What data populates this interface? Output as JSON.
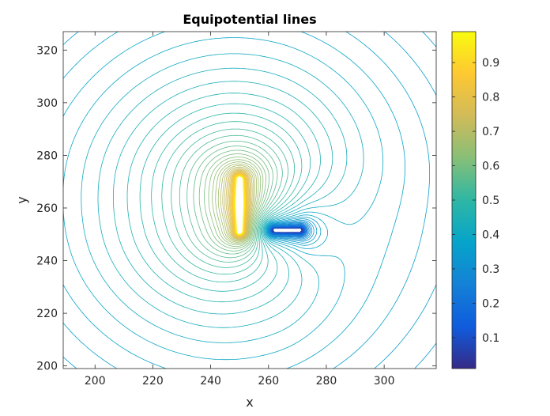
{
  "chart_data": {
    "type": "contour",
    "title": "Equipotential lines",
    "xlabel": "x",
    "ylabel": "y",
    "xlim": [
      189,
      318
    ],
    "ylim": [
      199,
      327
    ],
    "xticks": [
      200,
      220,
      240,
      260,
      280,
      300
    ],
    "yticks": [
      200,
      220,
      240,
      260,
      280,
      300,
      320
    ],
    "colormap": "parula",
    "colorbar": {
      "range": [
        0.01,
        0.99
      ],
      "ticks": [
        0.1,
        0.2,
        0.3,
        0.4,
        0.5,
        0.6,
        0.7,
        0.8,
        0.9
      ],
      "tick_labels": [
        "0.1",
        "0.2",
        "0.3",
        "0.4",
        "0.5",
        "0.6",
        "0.7",
        "0.8",
        "0.9"
      ]
    },
    "electrodes": [
      {
        "name": "vertical",
        "x": [
          250,
          250
        ],
        "y": [
          251,
          271
        ],
        "potential": 1.0
      },
      {
        "name": "horizontal",
        "x": [
          262,
          271
        ],
        "y": [
          251.5,
          251.5
        ],
        "potential": 0.0
      }
    ],
    "level_count": 60
  }
}
